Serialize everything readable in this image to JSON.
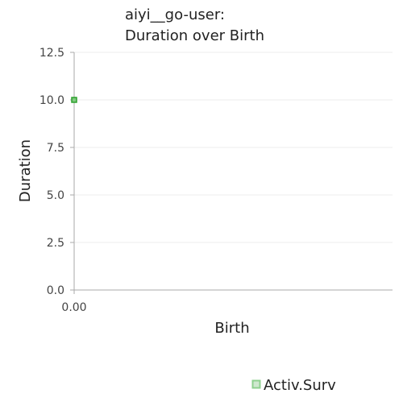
{
  "chart_data": {
    "type": "scatter",
    "title": [
      "aiyi__go-user:",
      "Duration over Birth"
    ],
    "xlabel": "Birth",
    "ylabel": "Duration",
    "ylim": [
      0,
      12.5
    ],
    "yticks": [
      "0.0",
      "2.5",
      "5.0",
      "7.5",
      "10.0",
      "12.5"
    ],
    "ytick_values": [
      0,
      2.5,
      5.0,
      7.5,
      10.0,
      12.5
    ],
    "xlim": [
      0,
      1
    ],
    "xticks": [
      "0.00"
    ],
    "xtick_values": [
      0
    ],
    "legend_position": "bottom-right",
    "series": [
      {
        "name": "Activ.Surv",
        "color": "#2ca02c",
        "points": [
          {
            "x": 0,
            "y": 10
          }
        ]
      }
    ]
  }
}
